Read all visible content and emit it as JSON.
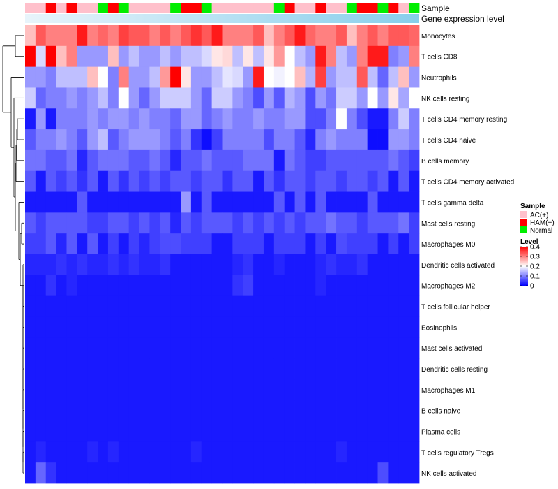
{
  "chart_data": {
    "type": "heatmap",
    "annotation_labels": [
      "Sample",
      "Gene expression level"
    ],
    "sample_groups": [
      "AC(+)",
      "AC(+)",
      "HAM(+)",
      "AC(+)",
      "HAM(+)",
      "AC(+)",
      "AC(+)",
      "Normal",
      "HAM(+)",
      "Normal",
      "AC(+)",
      "AC(+)",
      "AC(+)",
      "AC(+)",
      "Normal",
      "HAM(+)",
      "HAM(+)",
      "Normal",
      "AC(+)",
      "AC(+)",
      "AC(+)",
      "AC(+)",
      "AC(+)",
      "AC(+)",
      "Normal",
      "HAM(+)",
      "AC(+)",
      "AC(+)",
      "HAM(+)",
      "AC(+)",
      "AC(+)",
      "Normal",
      "HAM(+)",
      "HAM(+)",
      "Normal",
      "HAM(+)",
      "AC(+)",
      "Normal"
    ],
    "rows": [
      {
        "label": "Monocytes",
        "values": [
          0.25,
          0.33,
          0.3,
          0.3,
          0.3,
          0.38,
          0.3,
          0.32,
          0.3,
          0.35,
          0.33,
          0.33,
          0.3,
          0.33,
          0.3,
          0.33,
          0.36,
          0.33,
          0.38,
          0.3,
          0.3,
          0.3,
          0.33,
          0.25,
          0.3,
          0.33,
          0.38,
          0.32,
          0.3,
          0.3,
          0.33,
          0.25,
          0.3,
          0.33,
          0.3,
          0.33,
          0.33,
          0.32
        ]
      },
      {
        "label": "T cells CD8",
        "values": [
          0.4,
          0.17,
          0.4,
          0.25,
          0.3,
          0.12,
          0.12,
          0.12,
          0.25,
          0.12,
          0.15,
          0.12,
          0.12,
          0.15,
          0.12,
          0.15,
          0.15,
          0.17,
          0.22,
          0.23,
          0.15,
          0.22,
          0.15,
          0.22,
          0.28,
          0.2,
          0.15,
          0.12,
          0.38,
          0.3,
          0.15,
          0.12,
          0.3,
          0.38,
          0.38,
          0.1,
          0.12,
          0.3
        ]
      },
      {
        "label": "Neutrophils",
        "values": [
          0.12,
          0.12,
          0.1,
          0.15,
          0.15,
          0.15,
          0.25,
          0.2,
          0.1,
          0.3,
          0.12,
          0.12,
          0.15,
          0.28,
          0.4,
          0.22,
          0.12,
          0.12,
          0.15,
          0.18,
          0.17,
          0.12,
          0.38,
          0.2,
          0.19,
          0.2,
          0.25,
          0.14,
          0.35,
          0.12,
          0.15,
          0.15,
          0.33,
          0.15,
          0.08,
          0.15,
          0.25,
          0.12
        ]
      },
      {
        "label": "NK cells resting",
        "values": [
          0.16,
          0.08,
          0.1,
          0.1,
          0.12,
          0.1,
          0.12,
          0.15,
          0.1,
          0.2,
          0.12,
          0.08,
          0.12,
          0.16,
          0.16,
          0.16,
          0.12,
          0.08,
          0.16,
          0.16,
          0.12,
          0.1,
          0.06,
          0.12,
          0.07,
          0.14,
          0.12,
          0.06,
          0.12,
          0.09,
          0.16,
          0.16,
          0.12,
          0.2,
          0.12,
          0.22,
          0.13,
          0.2
        ]
      },
      {
        "label": "T cells CD4 memory resting",
        "values": [
          0.02,
          0.12,
          0.02,
          0.1,
          0.1,
          0.1,
          0.12,
          0.1,
          0.12,
          0.12,
          0.1,
          0.12,
          0.1,
          0.1,
          0.08,
          0.12,
          0.12,
          0.08,
          0.1,
          0.12,
          0.1,
          0.1,
          0.12,
          0.1,
          0.1,
          0.12,
          0.12,
          0.06,
          0.06,
          0.1,
          0.2,
          0.1,
          0.06,
          0.02,
          0.02,
          0.1,
          0.16,
          0.1
        ]
      },
      {
        "label": "T cells CD4 naive",
        "values": [
          0.07,
          0.1,
          0.1,
          0.12,
          0.1,
          0.07,
          0.12,
          0.15,
          0.07,
          0.1,
          0.12,
          0.12,
          0.12,
          0.1,
          0.07,
          0.1,
          0.04,
          0.01,
          0.05,
          0.1,
          0.1,
          0.1,
          0.1,
          0.06,
          0.1,
          0.1,
          0.07,
          0.03,
          0.1,
          0.12,
          0.1,
          0.1,
          0.1,
          0.01,
          0.01,
          0.12,
          0.12,
          0.1
        ]
      },
      {
        "label": "B cells memory",
        "values": [
          0.09,
          0.09,
          0.07,
          0.07,
          0.09,
          0.03,
          0.07,
          0.09,
          0.09,
          0.09,
          0.07,
          0.07,
          0.09,
          0.07,
          0.03,
          0.07,
          0.07,
          0.09,
          0.07,
          0.07,
          0.07,
          0.09,
          0.09,
          0.09,
          0.02,
          0.09,
          0.07,
          0.05,
          0.05,
          0.07,
          0.07,
          0.07,
          0.07,
          0.07,
          0.07,
          0.09,
          0.07,
          0.05
        ]
      },
      {
        "label": "T cells CD4 memory activated",
        "values": [
          0.07,
          0.02,
          0.07,
          0.05,
          0.07,
          0.04,
          0.07,
          0.02,
          0.07,
          0.04,
          0.07,
          0.05,
          0.07,
          0.05,
          0.07,
          0.07,
          0.05,
          0.07,
          0.07,
          0.04,
          0.07,
          0.07,
          0.02,
          0.07,
          0.04,
          0.07,
          0.07,
          0.05,
          0.07,
          0.07,
          0.05,
          0.07,
          0.07,
          0.05,
          0.07,
          0.02,
          0.07,
          0.02
        ]
      },
      {
        "label": "T cells gamma delta",
        "values": [
          0.02,
          0.02,
          0.02,
          0.02,
          0.02,
          0.07,
          0.02,
          0.02,
          0.02,
          0.02,
          0.02,
          0.02,
          0.02,
          0.02,
          0.02,
          0.12,
          0.02,
          0.07,
          0.02,
          0.02,
          0.02,
          0.02,
          0.02,
          0.02,
          0.07,
          0.02,
          0.07,
          0.02,
          0.07,
          0.02,
          0.02,
          0.02,
          0.02,
          0.07,
          0.02,
          0.02,
          0.02,
          0.02
        ]
      },
      {
        "label": "Mast cells resting",
        "values": [
          0.07,
          0.05,
          0.07,
          0.07,
          0.07,
          0.07,
          0.05,
          0.05,
          0.07,
          0.07,
          0.05,
          0.07,
          0.05,
          0.07,
          0.03,
          0.07,
          0.05,
          0.07,
          0.07,
          0.07,
          0.05,
          0.07,
          0.05,
          0.07,
          0.05,
          0.07,
          0.05,
          0.07,
          0.07,
          0.09,
          0.07,
          0.07,
          0.05,
          0.07,
          0.07,
          0.07,
          0.09,
          0.05
        ]
      },
      {
        "label": "Macrophages M0",
        "values": [
          0.05,
          0.05,
          0.07,
          0.03,
          0.07,
          0.02,
          0.07,
          0.02,
          0.05,
          0.02,
          0.05,
          0.03,
          0.05,
          0.06,
          0.06,
          0.05,
          0.05,
          0.05,
          0.02,
          0.02,
          0.05,
          0.05,
          0.05,
          0.02,
          0.05,
          0.05,
          0.05,
          0.02,
          0.05,
          0.02,
          0.06,
          0.05,
          0.05,
          0.05,
          0.02,
          0.05,
          0.02,
          0.05
        ]
      },
      {
        "label": "Dendritic cells activated",
        "values": [
          0.03,
          0.03,
          0.03,
          0.04,
          0.03,
          0.04,
          0.03,
          0.03,
          0.04,
          0.03,
          0.04,
          0.03,
          0.03,
          0.04,
          0.02,
          0.02,
          0.02,
          0.02,
          0.02,
          0.02,
          0.03,
          0.04,
          0.02,
          0.02,
          0.03,
          0.02,
          0.02,
          0.02,
          0.03,
          0.04,
          0.03,
          0.03,
          0.04,
          0.02,
          0.02,
          0.02,
          0.02,
          0.02
        ]
      },
      {
        "label": "Macrophages M2",
        "values": [
          0.02,
          0.02,
          0.04,
          0.02,
          0.03,
          0.02,
          0.02,
          0.02,
          0.02,
          0.02,
          0.02,
          0.02,
          0.02,
          0.02,
          0.02,
          0.02,
          0.02,
          0.02,
          0.02,
          0.02,
          0.04,
          0.05,
          0.02,
          0.02,
          0.02,
          0.02,
          0.02,
          0.02,
          0.03,
          0.02,
          0.02,
          0.02,
          0.02,
          0.02,
          0.02,
          0.02,
          0.02,
          0.02
        ]
      },
      {
        "label": "T cells follicular helper",
        "values": [
          0.02,
          0.02,
          0.02,
          0.02,
          0.02,
          0.02,
          0.02,
          0.02,
          0.02,
          0.02,
          0.02,
          0.02,
          0.02,
          0.02,
          0.02,
          0.02,
          0.02,
          0.02,
          0.02,
          0.02,
          0.02,
          0.02,
          0.02,
          0.02,
          0.02,
          0.02,
          0.02,
          0.02,
          0.02,
          0.02,
          0.02,
          0.02,
          0.02,
          0.02,
          0.02,
          0.02,
          0.02,
          0.02
        ]
      },
      {
        "label": "Eosinophils",
        "values": [
          0.02,
          0.02,
          0.02,
          0.02,
          0.02,
          0.02,
          0.02,
          0.02,
          0.02,
          0.02,
          0.02,
          0.02,
          0.02,
          0.02,
          0.02,
          0.02,
          0.02,
          0.02,
          0.02,
          0.02,
          0.02,
          0.02,
          0.02,
          0.02,
          0.02,
          0.02,
          0.02,
          0.02,
          0.02,
          0.02,
          0.02,
          0.02,
          0.02,
          0.02,
          0.02,
          0.02,
          0.02,
          0.02
        ]
      },
      {
        "label": "Mast cells activated",
        "values": [
          0.02,
          0.02,
          0.02,
          0.02,
          0.02,
          0.02,
          0.02,
          0.02,
          0.02,
          0.02,
          0.02,
          0.02,
          0.02,
          0.02,
          0.02,
          0.02,
          0.02,
          0.02,
          0.02,
          0.02,
          0.02,
          0.02,
          0.02,
          0.02,
          0.02,
          0.02,
          0.02,
          0.02,
          0.02,
          0.02,
          0.02,
          0.02,
          0.02,
          0.02,
          0.02,
          0.02,
          0.02,
          0.02
        ]
      },
      {
        "label": "Dendritic cells resting",
        "values": [
          0.02,
          0.02,
          0.02,
          0.02,
          0.02,
          0.02,
          0.02,
          0.02,
          0.02,
          0.02,
          0.02,
          0.02,
          0.02,
          0.02,
          0.02,
          0.02,
          0.02,
          0.02,
          0.02,
          0.02,
          0.02,
          0.02,
          0.02,
          0.02,
          0.02,
          0.02,
          0.02,
          0.02,
          0.02,
          0.02,
          0.02,
          0.02,
          0.02,
          0.02,
          0.02,
          0.02,
          0.02,
          0.02
        ]
      },
      {
        "label": "Macrophages M1",
        "values": [
          0.02,
          0.02,
          0.02,
          0.02,
          0.02,
          0.02,
          0.02,
          0.02,
          0.02,
          0.02,
          0.02,
          0.02,
          0.02,
          0.02,
          0.02,
          0.02,
          0.02,
          0.02,
          0.02,
          0.02,
          0.02,
          0.02,
          0.02,
          0.02,
          0.02,
          0.02,
          0.02,
          0.02,
          0.02,
          0.02,
          0.02,
          0.02,
          0.02,
          0.02,
          0.02,
          0.02,
          0.02,
          0.02
        ]
      },
      {
        "label": "B cells naive",
        "values": [
          0.02,
          0.02,
          0.02,
          0.02,
          0.02,
          0.02,
          0.02,
          0.02,
          0.02,
          0.02,
          0.02,
          0.02,
          0.02,
          0.02,
          0.02,
          0.02,
          0.02,
          0.02,
          0.02,
          0.02,
          0.02,
          0.02,
          0.02,
          0.02,
          0.02,
          0.02,
          0.02,
          0.02,
          0.02,
          0.02,
          0.02,
          0.02,
          0.02,
          0.02,
          0.02,
          0.02,
          0.02,
          0.02
        ]
      },
      {
        "label": "Plasma cells",
        "values": [
          0.02,
          0.02,
          0.02,
          0.02,
          0.02,
          0.02,
          0.02,
          0.02,
          0.02,
          0.02,
          0.02,
          0.02,
          0.02,
          0.02,
          0.02,
          0.02,
          0.02,
          0.02,
          0.02,
          0.02,
          0.02,
          0.02,
          0.02,
          0.02,
          0.02,
          0.02,
          0.02,
          0.02,
          0.02,
          0.02,
          0.02,
          0.02,
          0.02,
          0.02,
          0.02,
          0.02,
          0.02,
          0.02
        ]
      },
      {
        "label": "T cells regulatory  Tregs",
        "values": [
          0.02,
          0.03,
          0.02,
          0.02,
          0.02,
          0.02,
          0.03,
          0.02,
          0.03,
          0.02,
          0.02,
          0.02,
          0.02,
          0.02,
          0.02,
          0.02,
          0.03,
          0.02,
          0.02,
          0.02,
          0.02,
          0.02,
          0.02,
          0.02,
          0.02,
          0.02,
          0.02,
          0.02,
          0.02,
          0.02,
          0.03,
          0.02,
          0.02,
          0.02,
          0.02,
          0.02,
          0.02,
          0.02
        ]
      },
      {
        "label": "NK cells activated",
        "values": [
          0.02,
          0.08,
          0.04,
          0.02,
          0.02,
          0.02,
          0.02,
          0.02,
          0.02,
          0.02,
          0.02,
          0.02,
          0.02,
          0.02,
          0.02,
          0.02,
          0.02,
          0.02,
          0.02,
          0.02,
          0.02,
          0.02,
          0.02,
          0.02,
          0.02,
          0.02,
          0.02,
          0.02,
          0.02,
          0.02,
          0.02,
          0.02,
          0.02,
          0.02,
          0.06,
          0.02,
          0.02,
          0.02
        ]
      }
    ],
    "legend": {
      "sample_title": "Sample",
      "groups": [
        {
          "name": "AC(+)",
          "color": "#ffc0cb"
        },
        {
          "name": "HAM(+)",
          "color": "#ff0000"
        },
        {
          "name": "Normal",
          "color": "#00ee00"
        }
      ],
      "level_title": "Level",
      "level_ticks": [
        "0.4",
        "0.3",
        "0.2",
        "0.1",
        "0"
      ],
      "level_range": [
        0,
        0.4
      ]
    },
    "gene_expression_color": "#87ceeb",
    "color_scale": {
      "low": "#0000ff",
      "mid": "#ffffff",
      "high": "#ff0000",
      "midpoint": 0.2
    }
  }
}
